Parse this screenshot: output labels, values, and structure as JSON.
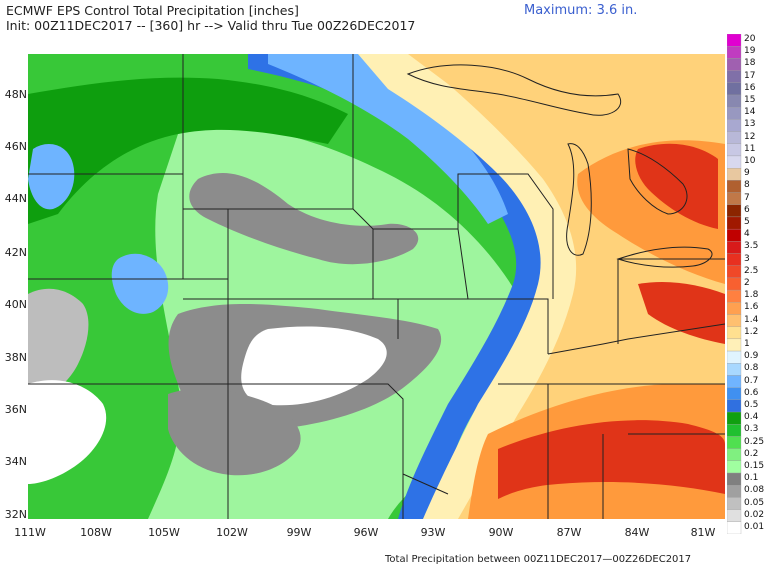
{
  "header": {
    "title": "ECMWF EPS Control Total Precipitation [inches]",
    "init_line": "Init: 00Z11DEC2017 -- [360] hr --> Valid thru Tue 00Z26DEC2017",
    "maximum": "Maximum: 3.6 in."
  },
  "footer": {
    "caption": "Total Precipitation between 00Z11DEC2017—00Z26DEC2017"
  },
  "axes": {
    "latitude_labels": [
      "48N",
      "46N",
      "44N",
      "42N",
      "40N",
      "38N",
      "36N",
      "34N",
      "32N"
    ],
    "longitude_labels": [
      "111W",
      "108W",
      "105W",
      "102W",
      "99W",
      "96W",
      "93W",
      "90W",
      "87W",
      "84W",
      "81W"
    ]
  },
  "colorbar": {
    "labels": [
      "20",
      "19",
      "18",
      "17",
      "16",
      "15",
      "14",
      "13",
      "12",
      "11",
      "10",
      "9",
      "8",
      "7",
      "6",
      "5",
      "4",
      "3.5",
      "3",
      "2.5",
      "2",
      "1.8",
      "1.6",
      "1.4",
      "1.2",
      "1",
      "0.9",
      "0.8",
      "0.7",
      "0.6",
      "0.5",
      "0.4",
      "0.3",
      "0.25",
      "0.2",
      "0.15",
      "0.1",
      "0.08",
      "0.05",
      "0.02",
      "0.01"
    ],
    "colors": [
      "#e000d0",
      "#c03cc0",
      "#a060b0",
      "#8070a8",
      "#7070a0",
      "#8888b0",
      "#9898c0",
      "#a8a8d0",
      "#b8b8d8",
      "#c8c8e4",
      "#d8d8ee",
      "#e8c8a0",
      "#b06030",
      "#c07848",
      "#8b2500",
      "#a01800",
      "#c00000",
      "#d81a1a",
      "#e83020",
      "#f04828",
      "#f86030",
      "#ff8040",
      "#ffa050",
      "#ffc070",
      "#ffe090",
      "#fff0b8",
      "#e0f4ff",
      "#a8d8ff",
      "#70b4ff",
      "#4090f0",
      "#3070e0",
      "#10a010",
      "#20c030",
      "#50e050",
      "#80f080",
      "#a0ffa0",
      "#808080",
      "#a0a0a0",
      "#c0c0c0",
      "#e0e0e0",
      "#ffffff"
    ]
  },
  "map_colors": {
    "none": "#ffffff",
    "trace": "#bdbdbd",
    "light_gray": "#8c8c8c",
    "green_light": "#9ef59e",
    "green": "#38c838",
    "green_dark": "#0e9e0e",
    "blue_light": "#6eb4ff",
    "blue": "#2e72e6",
    "cream": "#fff0b4",
    "yellow": "#ffd27a",
    "orange": "#ff9a3c",
    "red": "#e03418",
    "border": "#222222"
  }
}
